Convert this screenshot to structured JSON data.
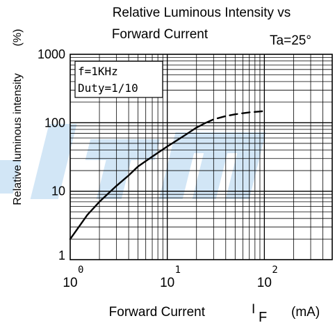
{
  "chart_data": {
    "type": "line",
    "title_line1": "Relative Luminous Intensity vs",
    "title_line2": "Forward Current",
    "condition": "Ta=25°",
    "ylabel": "Relative luminous intensity",
    "ylabel_unit": "(%)",
    "xlabel": "Forward Current",
    "xlabel_symbol": "I",
    "xlabel_subscript": "F",
    "xlabel_unit": "(mA)",
    "x_scale": "log",
    "y_scale": "log",
    "xlim": [
      1,
      500
    ],
    "ylim": [
      1,
      1000
    ],
    "grid": true,
    "x_ticks": [
      {
        "base": "10",
        "exp": "0",
        "value": 1
      },
      {
        "base": "10",
        "exp": "1",
        "value": 10
      },
      {
        "base": "10",
        "exp": "2",
        "value": 100
      }
    ],
    "y_ticks": [
      {
        "label": "1",
        "value": 1
      },
      {
        "label": "10",
        "value": 10
      },
      {
        "label": "100",
        "value": 100
      },
      {
        "label": "1000",
        "value": 1000
      }
    ],
    "legend_box": [
      "f=1KHz",
      "Duty=1/10"
    ],
    "legend_placement": "top-left",
    "series": [
      {
        "style": "solid",
        "x": [
          1,
          1.5,
          2,
          3,
          4,
          5,
          7,
          10,
          15,
          20,
          25
        ],
        "y": [
          2,
          4.5,
          7,
          12,
          17,
          23,
          32,
          45,
          65,
          85,
          100
        ]
      },
      {
        "style": "dashed",
        "x": [
          25,
          30,
          40,
          50,
          70,
          100
        ],
        "y": [
          100,
          112,
          125,
          133,
          142,
          148
        ]
      }
    ],
    "watermark": "ia-m"
  }
}
